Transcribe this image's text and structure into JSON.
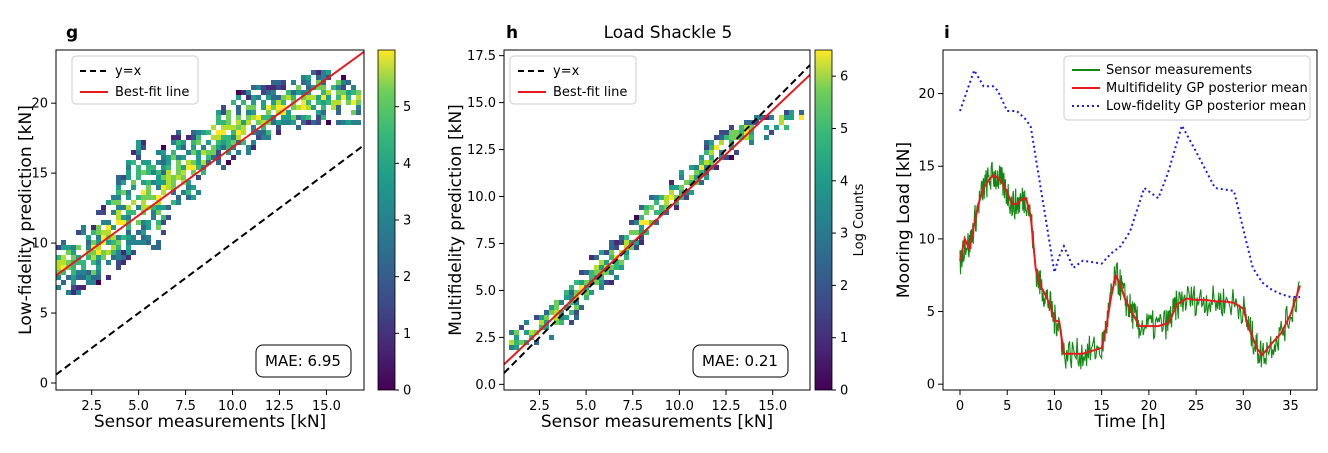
{
  "chart_data": [
    {
      "type": "heatmap",
      "panel_label": "g",
      "title": "",
      "xlabel": "Sensor measurements [kN]",
      "ylabel": "Low-fidelity prediction [kN]",
      "xlim": [
        0.6,
        17.0
      ],
      "ylim": [
        -0.5,
        23.8
      ],
      "xticks": [
        2.5,
        5.0,
        7.5,
        10.0,
        12.5,
        15.0
      ],
      "yticks": [
        0,
        5,
        10,
        15,
        20
      ],
      "colorbar": {
        "label": "",
        "range": [
          0,
          6
        ],
        "ticks": [
          0,
          1,
          2,
          3,
          4,
          5
        ]
      },
      "legend": [
        {
          "name": "y=x",
          "style": "dashed",
          "color": "#000000"
        },
        {
          "name": "Best-fit line",
          "style": "solid",
          "color": "#e8191c"
        }
      ],
      "reference_line": {
        "name": "y=x",
        "slope": 1,
        "intercept": 0
      },
      "fit_line": {
        "name": "Best-fit line",
        "slope": 0.975,
        "intercept": 7.1
      },
      "mae_label": "MAE: 6.95",
      "density_band": [
        [
          0.6,
          8.2,
          1.8
        ],
        [
          2.5,
          9.0,
          2.5
        ],
        [
          4.0,
          11.5,
          3.5
        ],
        [
          5.0,
          13.5,
          4.0
        ],
        [
          6.0,
          13.0,
          3.5
        ],
        [
          7.0,
          15.0,
          3.0
        ],
        [
          8.0,
          15.5,
          2.5
        ],
        [
          9.0,
          17.5,
          2.5
        ],
        [
          10.5,
          18.5,
          2.5
        ],
        [
          12.0,
          19.5,
          2.0
        ],
        [
          13.5,
          20.0,
          2.0
        ],
        [
          15.0,
          20.5,
          2.0
        ],
        [
          16.8,
          20.0,
          1.5
        ]
      ]
    },
    {
      "type": "heatmap",
      "panel_label": "h",
      "title": "Load Shackle 5",
      "xlabel": "Sensor measurements [kN]",
      "ylabel": "Multifidelity prediction [kN]",
      "xlim": [
        0.6,
        17.0
      ],
      "ylim": [
        -0.3,
        17.8
      ],
      "xticks": [
        2.5,
        5.0,
        7.5,
        10.0,
        12.5,
        15.0
      ],
      "yticks": [
        0.0,
        2.5,
        5.0,
        7.5,
        10.0,
        12.5,
        15.0,
        17.5
      ],
      "colorbar": {
        "label": "Log Counts",
        "range": [
          0,
          6.5
        ],
        "ticks": [
          0,
          1,
          2,
          3,
          4,
          5,
          6
        ]
      },
      "legend": [
        {
          "name": "y=x",
          "style": "dashed",
          "color": "#000000"
        },
        {
          "name": "Best-fit line",
          "style": "solid",
          "color": "#e8191c"
        }
      ],
      "reference_line": {
        "name": "y=x",
        "slope": 1,
        "intercept": 0
      },
      "fit_line": {
        "name": "Best-fit line",
        "slope": 0.94,
        "intercept": 0.5
      },
      "mae_label": "MAE: 0.21",
      "density_band": [
        [
          1.0,
          2.2,
          0.6
        ],
        [
          2.5,
          3.0,
          1.0
        ],
        [
          4.0,
          4.2,
          1.2
        ],
        [
          5.5,
          5.8,
          1.2
        ],
        [
          7.0,
          7.0,
          1.0
        ],
        [
          8.0,
          8.5,
          1.0
        ],
        [
          9.0,
          9.5,
          0.9
        ],
        [
          10.5,
          10.8,
          1.0
        ],
        [
          12.0,
          12.5,
          1.0
        ],
        [
          13.5,
          13.3,
          0.8
        ],
        [
          15.5,
          14.0,
          0.6
        ],
        [
          16.8,
          14.2,
          0.3
        ]
      ]
    },
    {
      "type": "line",
      "panel_label": "i",
      "title": "",
      "xlabel": "Time [h]",
      "ylabel": "Mooring Load [kN]",
      "xlim": [
        -1.8,
        37.8
      ],
      "ylim": [
        -0.4,
        23.0
      ],
      "xticks": [
        0,
        5,
        10,
        15,
        20,
        25,
        30,
        35
      ],
      "yticks": [
        0,
        5,
        10,
        15,
        20
      ],
      "series": [
        {
          "name": "Sensor measurements",
          "color": "#128712",
          "style": "solid",
          "x": [
            0,
            0.5,
            1,
            1.5,
            2,
            2.5,
            3,
            3.5,
            4,
            4.5,
            5,
            5.5,
            6,
            6.5,
            7,
            7.5,
            8,
            8.5,
            9,
            9.5,
            10,
            10.5,
            11,
            12,
            13,
            14,
            15,
            15.5,
            16,
            16.5,
            17,
            17.5,
            18,
            18.5,
            19,
            20,
            21,
            22,
            22.5,
            23,
            24,
            25,
            26,
            27,
            28,
            29,
            30,
            30.5,
            31,
            31.5,
            32,
            33,
            34,
            35,
            36
          ],
          "values": [
            8.3,
            9.8,
            9.5,
            11.0,
            12.5,
            13.5,
            14.0,
            14.4,
            14.2,
            13.8,
            13.2,
            12.4,
            12.4,
            12.7,
            12.8,
            11.5,
            8.0,
            6.8,
            6.2,
            5.5,
            4.4,
            4.3,
            2.1,
            2.1,
            2.1,
            2.3,
            2.5,
            4.0,
            6.0,
            7.5,
            6.8,
            5.8,
            5.2,
            4.6,
            4.0,
            4.0,
            4.0,
            4.2,
            4.8,
            5.5,
            5.9,
            5.8,
            5.8,
            5.7,
            5.7,
            5.6,
            5.2,
            4.0,
            3.2,
            2.4,
            2.0,
            2.8,
            3.5,
            4.8,
            6.8
          ]
        },
        {
          "name": "Multifidelity GP posterior mean",
          "color": "#e8191c",
          "style": "solid",
          "x": [
            0,
            0.5,
            1,
            1.5,
            2,
            2.5,
            3,
            3.5,
            4,
            4.5,
            5,
            5.5,
            6,
            6.5,
            7,
            7.5,
            8,
            8.5,
            9,
            9.5,
            10,
            10.5,
            11,
            12,
            13,
            14,
            15,
            15.5,
            16,
            16.5,
            17,
            17.5,
            18,
            18.5,
            19,
            20,
            21,
            22,
            22.5,
            23,
            24,
            25,
            26,
            27,
            28,
            29,
            30,
            30.5,
            31,
            31.5,
            32,
            33,
            34,
            35,
            36
          ],
          "values": [
            8.5,
            10.0,
            9.3,
            11.0,
            12.5,
            13.5,
            14.0,
            14.4,
            14.2,
            13.8,
            13.2,
            12.4,
            12.4,
            12.7,
            12.8,
            11.5,
            8.0,
            6.8,
            6.2,
            5.5,
            4.4,
            4.3,
            2.1,
            2.1,
            2.1,
            2.3,
            2.5,
            4.0,
            6.0,
            7.5,
            6.8,
            5.8,
            5.2,
            4.6,
            4.0,
            4.0,
            4.0,
            4.2,
            4.8,
            5.5,
            5.9,
            5.8,
            5.8,
            5.7,
            5.7,
            5.6,
            5.2,
            4.0,
            3.2,
            2.4,
            2.0,
            2.8,
            3.5,
            4.8,
            6.8
          ]
        },
        {
          "name": "Low-fidelity GP posterior mean",
          "color": "#1c1ce0",
          "style": "dotted",
          "x": [
            0,
            1.5,
            2.5,
            3.5,
            4,
            5,
            6,
            7,
            7.5,
            10,
            10.5,
            11,
            12,
            13,
            14,
            15,
            16,
            17,
            18,
            19.5,
            21,
            22,
            23.5,
            25,
            27,
            29,
            31,
            32,
            33,
            34,
            35,
            36
          ],
          "values": [
            18.8,
            21.6,
            20.5,
            20.5,
            20.2,
            18.8,
            18.8,
            18.2,
            17.7,
            7.7,
            8.8,
            9.5,
            8.0,
            8.5,
            8.4,
            8.3,
            9.0,
            9.5,
            10.5,
            13.5,
            12.8,
            14.5,
            17.8,
            16.0,
            13.5,
            13.3,
            8.0,
            7.0,
            6.5,
            6.2,
            6.0,
            6.0
          ]
        }
      ],
      "legend": [
        {
          "name": "Sensor measurements"
        },
        {
          "name": "Multifidelity GP posterior mean"
        },
        {
          "name": "Low-fidelity GP posterior mean"
        }
      ]
    }
  ]
}
